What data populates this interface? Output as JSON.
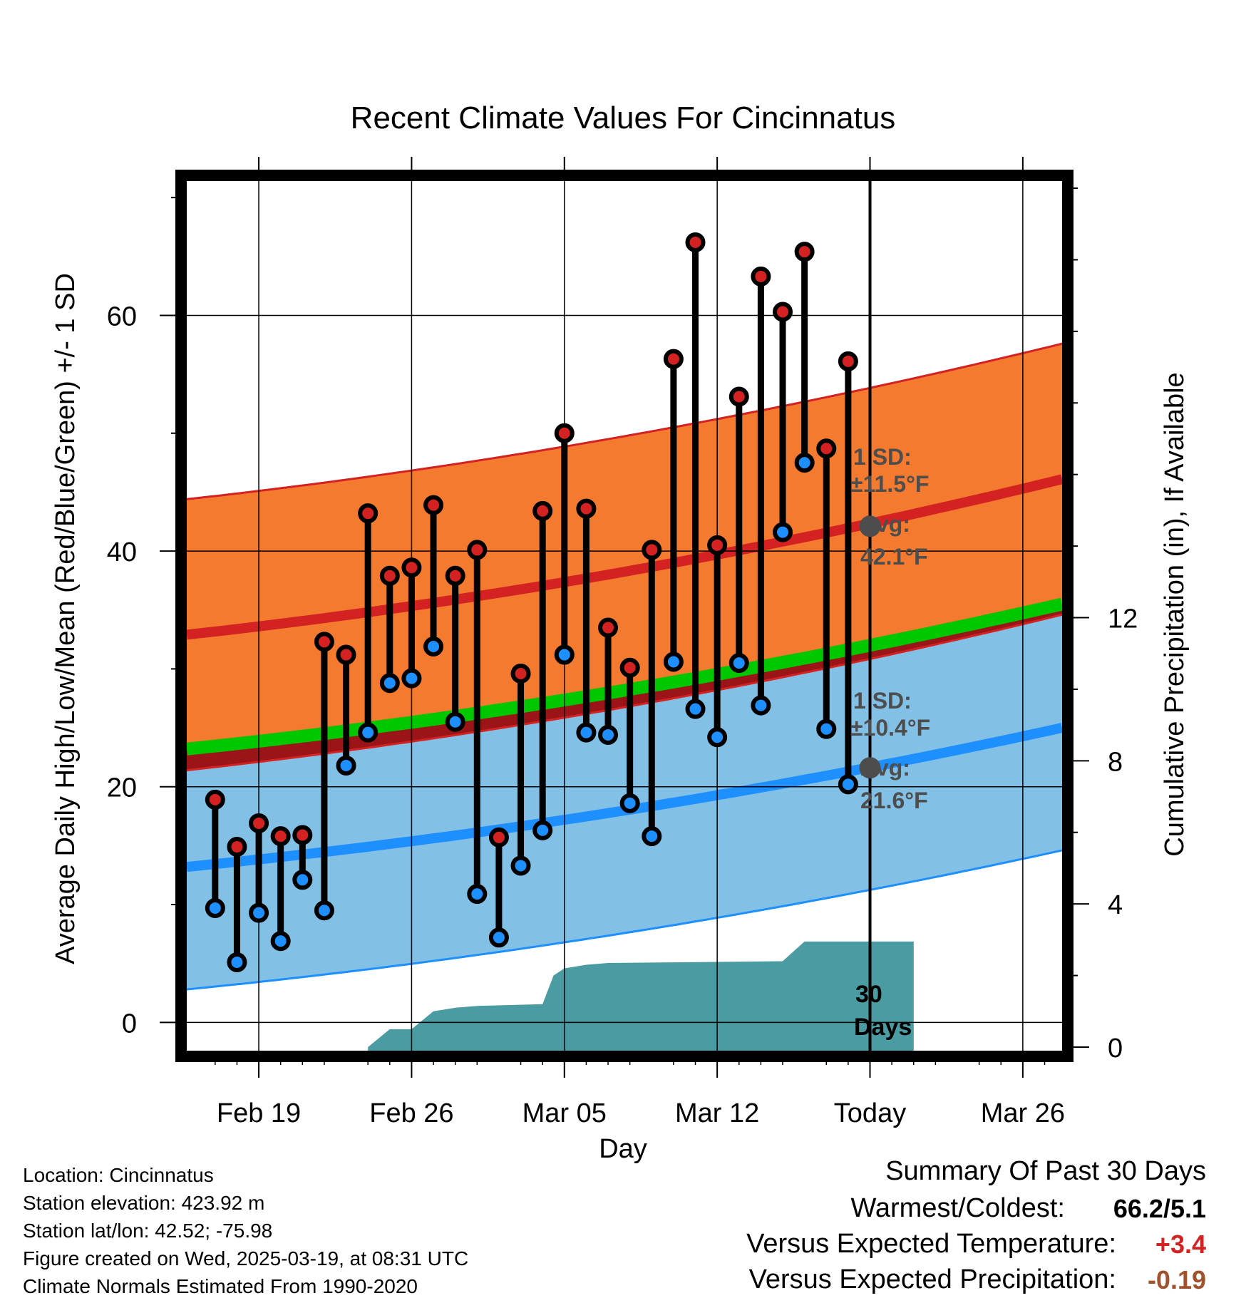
{
  "chart_data": {
    "type": "line",
    "title": "Recent Climate Values For Cincinnatus",
    "xlabel": "Day",
    "ylabel": "Average Daily High/Low/Mean (Red/Blue/Green) +/- 1 SD",
    "y2label": "Cumulative Precipitation (in), If Available",
    "ylim": [
      -2.4,
      71.4
    ],
    "y2lim": [
      -0.1,
      24.2
    ],
    "yticks": [
      0,
      20,
      40,
      60
    ],
    "y2ticks": [
      0,
      4,
      8,
      12
    ],
    "xticks": [
      {
        "day": 3,
        "label": "Feb 19"
      },
      {
        "day": 10,
        "label": "Feb 26"
      },
      {
        "day": 17,
        "label": "Mar 05"
      },
      {
        "day": 24,
        "label": "Mar 12"
      },
      {
        "day": 31,
        "label": "Today"
      },
      {
        "day": 38,
        "label": "Mar 26"
      }
    ],
    "today_day": 31,
    "daily_high": [
      18.9,
      14.9,
      16.9,
      15.8,
      15.9,
      32.3,
      31.2,
      43.2,
      37.9,
      38.6,
      43.9,
      37.9,
      40.1,
      15.7,
      29.6,
      43.4,
      50.0,
      43.6,
      33.5,
      30.1,
      40.1,
      56.3,
      66.2,
      40.5,
      53.1,
      63.3,
      60.3,
      65.4,
      48.7,
      56.1
    ],
    "daily_low": [
      9.7,
      5.1,
      9.3,
      6.9,
      12.1,
      9.5,
      21.8,
      24.6,
      28.8,
      29.2,
      31.9,
      25.5,
      10.9,
      7.2,
      13.3,
      16.3,
      31.2,
      24.6,
      24.4,
      18.6,
      15.8,
      30.6,
      26.6,
      24.2,
      30.5,
      26.9,
      41.6,
      47.5,
      24.9,
      20.2
    ],
    "normal_high": {
      "start": 32.9,
      "end": 46.1,
      "today": 42.1
    },
    "normal_low": {
      "start": 13.2,
      "end": 25.0,
      "today": 21.6
    },
    "normal_mean": {
      "start": 23.2,
      "end": 35.5
    },
    "sd_high": 11.5,
    "sd_low": 10.4,
    "precip_cumulative": [
      {
        "day": 8,
        "value": 0
      },
      {
        "day": 9,
        "value": 0.5
      },
      {
        "day": 10,
        "value": 0.5
      },
      {
        "day": 11,
        "value": 1.0
      },
      {
        "day": 12,
        "value": 1.1
      },
      {
        "day": 13,
        "value": 1.15
      },
      {
        "day": 16,
        "value": 1.2
      },
      {
        "day": 16.5,
        "value": 2.0
      },
      {
        "day": 17,
        "value": 2.2
      },
      {
        "day": 18,
        "value": 2.3
      },
      {
        "day": 19,
        "value": 2.35
      },
      {
        "day": 27,
        "value": 2.4
      },
      {
        "day": 28,
        "value": 2.95
      },
      {
        "day": 33,
        "value": 2.95
      }
    ],
    "annotations": {
      "high_sd_label": "1 SD:",
      "high_sd_value": "±11.5°F",
      "high_avg_label": "Avg:",
      "high_avg_value": "42.1°F",
      "low_sd_label": "1 SD:",
      "low_sd_value": "±10.4°F",
      "low_avg_label": "Avg:",
      "low_avg_value": "21.6°F",
      "period_number": "30",
      "period_unit": "Days"
    },
    "colors": {
      "high_band": "#f47a30",
      "high_line": "#d42222",
      "low_band": "#82c0e6",
      "low_line": "#1e8fff",
      "mean_line": "#00c800",
      "overlap_band": "#9a1418",
      "precip": "#4a9ba2",
      "high_marker": "#d42222",
      "low_marker": "#1e8fff",
      "avg_marker": "#4d4d4d"
    }
  },
  "meta": {
    "location": "Location: Cincinnatus",
    "elevation": "Station elevation: 423.92 m",
    "latlon": "Station lat/lon: 42.52; -75.98",
    "created": "Figure created on Wed, 2025-03-19, at 08:31 UTC",
    "normals": "Climate Normals Estimated From 1990-2020"
  },
  "summary": {
    "title": "Summary Of Past 30 Days",
    "warm_cold_label": "Warmest/Coldest:",
    "warm_cold_value": "66.2/5.1",
    "temp_label": "Versus Expected Temperature:",
    "temp_value": "+3.4",
    "temp_color": "#d42222",
    "precip_label": "Versus Expected Precipitation:",
    "precip_value": "-0.19",
    "precip_color": "#a0522d"
  }
}
